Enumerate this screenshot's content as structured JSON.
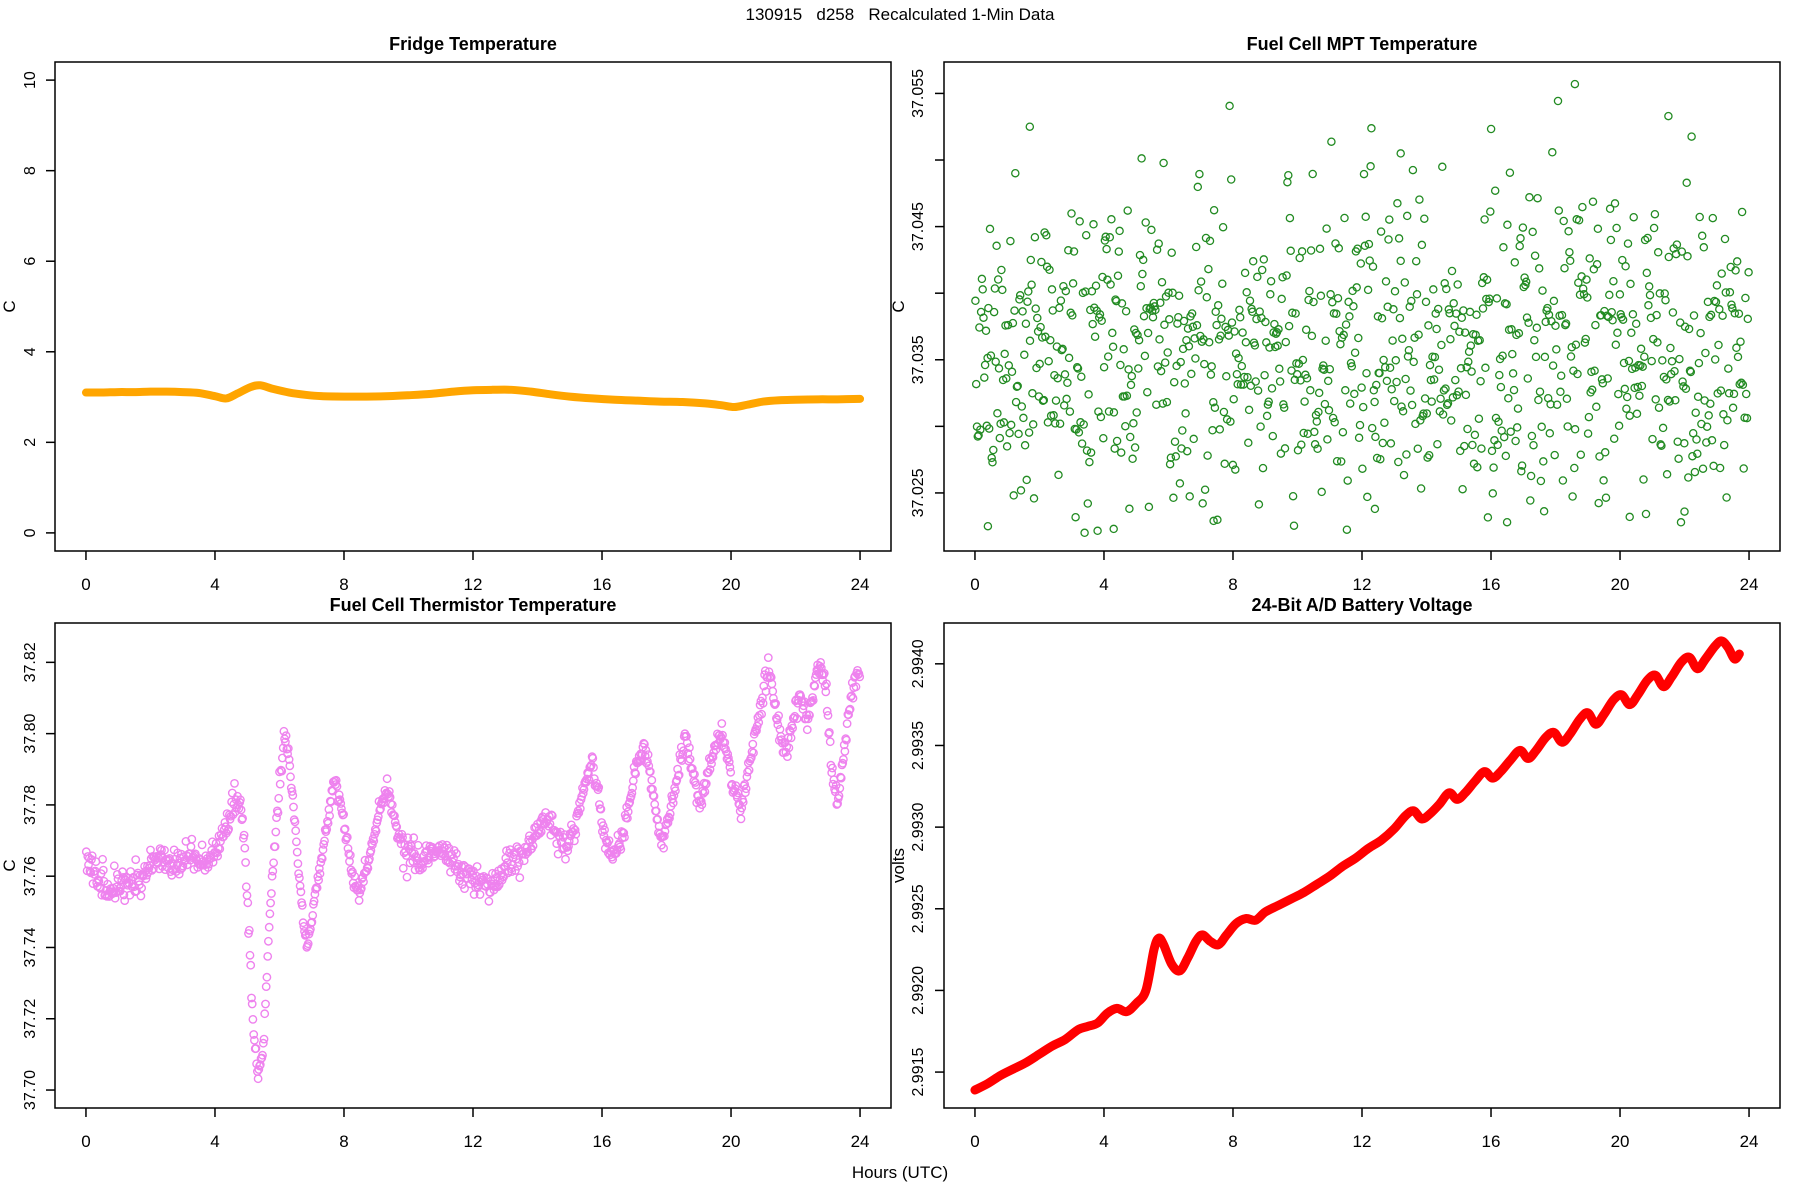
{
  "page": {
    "main_title": "130915   d258   Recalculated 1-Min Data",
    "xlabel_shared": "Hours (UTC)"
  },
  "chart_data": [
    {
      "id": "fridge",
      "type": "line",
      "title": "Fridge Temperature",
      "ylabel": "C",
      "xlabel": "",
      "xlim": [
        0,
        24
      ],
      "ylim": [
        0,
        10
      ],
      "xticks": [
        {
          "v": 0,
          "label": "0"
        },
        {
          "v": 4,
          "label": "4"
        },
        {
          "v": 8,
          "label": "8"
        },
        {
          "v": 12,
          "label": "12"
        },
        {
          "v": 16,
          "label": "16"
        },
        {
          "v": 20,
          "label": "20"
        },
        {
          "v": 24,
          "label": "24"
        }
      ],
      "yticks": [
        {
          "v": 0,
          "label": "0"
        },
        {
          "v": 2,
          "label": "2"
        },
        {
          "v": 4,
          "label": "4"
        },
        {
          "v": 6,
          "label": "6"
        },
        {
          "v": 8,
          "label": "8"
        },
        {
          "v": 10,
          "label": "10"
        }
      ],
      "color": "#FFA500",
      "line_width": 8,
      "points": [
        [
          0,
          3.1
        ],
        [
          0.5,
          3.1
        ],
        [
          1,
          3.11
        ],
        [
          1.5,
          3.11
        ],
        [
          2,
          3.12
        ],
        [
          2.5,
          3.12
        ],
        [
          3,
          3.11
        ],
        [
          3.5,
          3.09
        ],
        [
          4.0,
          3.02
        ],
        [
          4.35,
          2.97
        ],
        [
          4.7,
          3.08
        ],
        [
          5.1,
          3.22
        ],
        [
          5.4,
          3.26
        ],
        [
          5.8,
          3.18
        ],
        [
          6.3,
          3.1
        ],
        [
          6.8,
          3.05
        ],
        [
          7.3,
          3.02
        ],
        [
          8,
          3.01
        ],
        [
          8.7,
          3.01
        ],
        [
          9.4,
          3.02
        ],
        [
          10,
          3.04
        ],
        [
          10.7,
          3.07
        ],
        [
          11.4,
          3.12
        ],
        [
          12,
          3.15
        ],
        [
          12.6,
          3.16
        ],
        [
          13.2,
          3.16
        ],
        [
          13.8,
          3.12
        ],
        [
          14.4,
          3.06
        ],
        [
          15,
          3.01
        ],
        [
          15.7,
          2.97
        ],
        [
          16.4,
          2.94
        ],
        [
          17.1,
          2.92
        ],
        [
          17.8,
          2.9
        ],
        [
          18.5,
          2.89
        ],
        [
          19.2,
          2.86
        ],
        [
          19.7,
          2.82
        ],
        [
          20.1,
          2.78
        ],
        [
          20.5,
          2.83
        ],
        [
          21,
          2.9
        ],
        [
          21.5,
          2.93
        ],
        [
          22,
          2.94
        ],
        [
          22.7,
          2.95
        ],
        [
          23.3,
          2.95
        ],
        [
          24,
          2.96
        ]
      ]
    },
    {
      "id": "mpt",
      "type": "scatter-random",
      "title": "Fuel Cell MPT Temperature",
      "ylabel": "C",
      "xlabel": "",
      "xlim": [
        0,
        24
      ],
      "ylim": [
        37.022,
        37.056
      ],
      "xticks": [
        {
          "v": 0,
          "label": "0"
        },
        {
          "v": 4,
          "label": "4"
        },
        {
          "v": 8,
          "label": "8"
        },
        {
          "v": 12,
          "label": "12"
        },
        {
          "v": 16,
          "label": "16"
        },
        {
          "v": 20,
          "label": "20"
        },
        {
          "v": 24,
          "label": "24"
        }
      ],
      "yticks": [
        {
          "v": 37.025,
          "label": "37.025"
        },
        {
          "v": 37.03,
          "label": ""
        },
        {
          "v": 37.035,
          "label": "37.035"
        },
        {
          "v": 37.04,
          "label": ""
        },
        {
          "v": 37.045,
          "label": "37.045"
        },
        {
          "v": 37.05,
          "label": ""
        },
        {
          "v": 37.055,
          "label": "37.055"
        }
      ],
      "color": "#228B22",
      "marker": "open-circle",
      "marker_radius": 3.6,
      "marker_stroke": 1.3,
      "n_points": 950,
      "mean": 37.0355,
      "sd": 0.0058,
      "clip": [
        37.022,
        37.056
      ],
      "seed": 1337,
      "extra_points": [
        [
          18.6,
          37.0557
        ],
        [
          1.7,
          37.0525
        ],
        [
          21.5,
          37.0533
        ],
        [
          13.2,
          37.0505
        ],
        [
          0.4,
          37.0225
        ],
        [
          4.3,
          37.0223
        ],
        [
          7.4,
          37.0229
        ],
        [
          12.4,
          37.0238
        ],
        [
          16.5,
          37.0228
        ],
        [
          20.3,
          37.0232
        ],
        [
          22.0,
          37.0236
        ]
      ]
    },
    {
      "id": "thermistor",
      "type": "scatter-profile",
      "title": "Fuel Cell Thermistor Temperature",
      "ylabel": "C",
      "xlabel": "",
      "xlim": [
        0,
        24
      ],
      "ylim": [
        37.7,
        37.826
      ],
      "xticks": [
        {
          "v": 0,
          "label": "0"
        },
        {
          "v": 4,
          "label": "4"
        },
        {
          "v": 8,
          "label": "8"
        },
        {
          "v": 12,
          "label": "12"
        },
        {
          "v": 16,
          "label": "16"
        },
        {
          "v": 20,
          "label": "20"
        },
        {
          "v": 24,
          "label": "24"
        }
      ],
      "yticks": [
        {
          "v": 37.7,
          "label": "37.70"
        },
        {
          "v": 37.72,
          "label": "37.72"
        },
        {
          "v": 37.74,
          "label": "37.74"
        },
        {
          "v": 37.76,
          "label": "37.76"
        },
        {
          "v": 37.78,
          "label": "37.78"
        },
        {
          "v": 37.8,
          "label": "37.80"
        },
        {
          "v": 37.82,
          "label": "37.82"
        }
      ],
      "color": "#EE82EE",
      "marker": "open-circle",
      "marker_radius": 3.7,
      "marker_stroke": 1.4,
      "n_points": 1050,
      "seed": 77,
      "noise_segments": [
        {
          "from": 0.0,
          "to": 4.9,
          "sd": 0.0024
        },
        {
          "from": 4.9,
          "to": 9.6,
          "sd": 0.0012
        },
        {
          "from": 9.6,
          "to": 13.5,
          "sd": 0.0022
        },
        {
          "from": 13.5,
          "to": 24.0,
          "sd": 0.0015
        }
      ],
      "profile": [
        [
          0,
          37.764
        ],
        [
          0.3,
          37.76
        ],
        [
          0.6,
          37.757
        ],
        [
          0.9,
          37.759
        ],
        [
          1.2,
          37.756
        ],
        [
          1.5,
          37.758
        ],
        [
          1.8,
          37.762
        ],
        [
          2.1,
          37.765
        ],
        [
          2.4,
          37.763
        ],
        [
          2.7,
          37.762
        ],
        [
          3.0,
          37.765
        ],
        [
          3.3,
          37.766
        ],
        [
          3.6,
          37.763
        ],
        [
          3.9,
          37.765
        ],
        [
          4.2,
          37.769
        ],
        [
          4.5,
          37.779
        ],
        [
          4.7,
          37.783
        ],
        [
          4.9,
          37.773
        ],
        [
          5.05,
          37.745
        ],
        [
          5.2,
          37.716
        ],
        [
          5.35,
          37.704
        ],
        [
          5.5,
          37.712
        ],
        [
          5.65,
          37.74
        ],
        [
          5.8,
          37.762
        ],
        [
          6.0,
          37.785
        ],
        [
          6.15,
          37.8
        ],
        [
          6.3,
          37.793
        ],
        [
          6.5,
          37.772
        ],
        [
          6.7,
          37.75
        ],
        [
          6.85,
          37.74
        ],
        [
          7.0,
          37.748
        ],
        [
          7.2,
          37.76
        ],
        [
          7.45,
          37.773
        ],
        [
          7.7,
          37.787
        ],
        [
          7.9,
          37.781
        ],
        [
          8.1,
          37.77
        ],
        [
          8.3,
          37.758
        ],
        [
          8.5,
          37.755
        ],
        [
          8.7,
          37.762
        ],
        [
          8.9,
          37.77
        ],
        [
          9.15,
          37.78
        ],
        [
          9.35,
          37.784
        ],
        [
          9.6,
          37.775
        ],
        [
          9.85,
          37.768
        ],
        [
          10.1,
          37.766
        ],
        [
          10.4,
          37.764
        ],
        [
          10.7,
          37.766
        ],
        [
          11.0,
          37.768
        ],
        [
          11.3,
          37.765
        ],
        [
          11.6,
          37.762
        ],
        [
          11.9,
          37.76
        ],
        [
          12.2,
          37.758
        ],
        [
          12.5,
          37.757
        ],
        [
          12.8,
          37.76
        ],
        [
          13.1,
          37.764
        ],
        [
          13.4,
          37.765
        ],
        [
          13.7,
          37.768
        ],
        [
          14.0,
          37.772
        ],
        [
          14.3,
          37.777
        ],
        [
          14.6,
          37.772
        ],
        [
          14.9,
          37.768
        ],
        [
          15.2,
          37.774
        ],
        [
          15.45,
          37.785
        ],
        [
          15.7,
          37.792
        ],
        [
          15.9,
          37.781
        ],
        [
          16.1,
          37.77
        ],
        [
          16.35,
          37.765
        ],
        [
          16.6,
          37.771
        ],
        [
          16.85,
          37.779
        ],
        [
          17.1,
          37.793
        ],
        [
          17.3,
          37.796
        ],
        [
          17.5,
          37.789
        ],
        [
          17.7,
          37.775
        ],
        [
          17.9,
          37.77
        ],
        [
          18.1,
          37.778
        ],
        [
          18.35,
          37.79
        ],
        [
          18.6,
          37.798
        ],
        [
          18.8,
          37.79
        ],
        [
          19.0,
          37.78
        ],
        [
          19.2,
          37.785
        ],
        [
          19.45,
          37.795
        ],
        [
          19.7,
          37.801
        ],
        [
          19.9,
          37.793
        ],
        [
          20.1,
          37.784
        ],
        [
          20.3,
          37.779
        ],
        [
          20.55,
          37.79
        ],
        [
          20.8,
          37.802
        ],
        [
          21.0,
          37.812
        ],
        [
          21.15,
          37.818
        ],
        [
          21.35,
          37.81
        ],
        [
          21.55,
          37.798
        ],
        [
          21.75,
          37.795
        ],
        [
          21.95,
          37.806
        ],
        [
          22.15,
          37.812
        ],
        [
          22.35,
          37.802
        ],
        [
          22.55,
          37.812
        ],
        [
          22.75,
          37.82
        ],
        [
          22.95,
          37.812
        ],
        [
          23.15,
          37.788
        ],
        [
          23.3,
          37.78
        ],
        [
          23.5,
          37.795
        ],
        [
          23.7,
          37.81
        ],
        [
          23.9,
          37.816
        ]
      ]
    },
    {
      "id": "battery",
      "type": "line",
      "title": "24-Bit A/D Battery Voltage",
      "ylabel": "volts",
      "xlabel": "",
      "xlim": [
        0,
        24
      ],
      "ylim": [
        2.99139,
        2.99414
      ],
      "xticks": [
        {
          "v": 0,
          "label": "0"
        },
        {
          "v": 4,
          "label": "4"
        },
        {
          "v": 8,
          "label": "8"
        },
        {
          "v": 12,
          "label": "12"
        },
        {
          "v": 16,
          "label": "16"
        },
        {
          "v": 20,
          "label": "20"
        },
        {
          "v": 24,
          "label": "24"
        }
      ],
      "yticks": [
        {
          "v": 2.9915,
          "label": "2.9915"
        },
        {
          "v": 2.992,
          "label": "2.9920"
        },
        {
          "v": 2.9925,
          "label": "2.9925"
        },
        {
          "v": 2.993,
          "label": "2.9930"
        },
        {
          "v": 2.9935,
          "label": "2.9935"
        },
        {
          "v": 2.994,
          "label": "2.9940"
        }
      ],
      "color": "#FF0000",
      "line_width": 9,
      "points": [
        [
          0,
          2.99139
        ],
        [
          0.4,
          2.99143
        ],
        [
          0.8,
          2.99148
        ],
        [
          1.2,
          2.99152
        ],
        [
          1.6,
          2.99156
        ],
        [
          2.0,
          2.99161
        ],
        [
          2.4,
          2.99166
        ],
        [
          2.8,
          2.9917
        ],
        [
          3.2,
          2.99176
        ],
        [
          3.5,
          2.99178
        ],
        [
          3.8,
          2.9918
        ],
        [
          4.1,
          2.99186
        ],
        [
          4.4,
          2.99189
        ],
        [
          4.7,
          2.99187
        ],
        [
          5.0,
          2.99192
        ],
        [
          5.3,
          2.992
        ],
        [
          5.55,
          2.99225
        ],
        [
          5.7,
          2.99232
        ],
        [
          5.85,
          2.99228
        ],
        [
          6.1,
          2.99216
        ],
        [
          6.35,
          2.99212
        ],
        [
          6.6,
          2.9922
        ],
        [
          6.85,
          2.9923
        ],
        [
          7.05,
          2.99234
        ],
        [
          7.3,
          2.9923
        ],
        [
          7.55,
          2.99228
        ],
        [
          7.8,
          2.99234
        ],
        [
          8.1,
          2.99241
        ],
        [
          8.4,
          2.99244
        ],
        [
          8.7,
          2.99243
        ],
        [
          9.0,
          2.99248
        ],
        [
          9.4,
          2.99252
        ],
        [
          9.8,
          2.99256
        ],
        [
          10.2,
          2.9926
        ],
        [
          10.6,
          2.99265
        ],
        [
          11.0,
          2.9927
        ],
        [
          11.4,
          2.99276
        ],
        [
          11.8,
          2.99281
        ],
        [
          12.2,
          2.99287
        ],
        [
          12.6,
          2.99292
        ],
        [
          13.0,
          2.99299
        ],
        [
          13.35,
          2.99307
        ],
        [
          13.6,
          2.9931
        ],
        [
          13.85,
          2.99305
        ],
        [
          14.1,
          2.99308
        ],
        [
          14.4,
          2.99314
        ],
        [
          14.7,
          2.99321
        ],
        [
          14.95,
          2.99317
        ],
        [
          15.2,
          2.99321
        ],
        [
          15.5,
          2.99328
        ],
        [
          15.8,
          2.99334
        ],
        [
          16.05,
          2.9933
        ],
        [
          16.3,
          2.99334
        ],
        [
          16.6,
          2.99341
        ],
        [
          16.9,
          2.99347
        ],
        [
          17.15,
          2.99342
        ],
        [
          17.4,
          2.99347
        ],
        [
          17.7,
          2.99355
        ],
        [
          17.95,
          2.99358
        ],
        [
          18.2,
          2.99352
        ],
        [
          18.45,
          2.99357
        ],
        [
          18.75,
          2.99366
        ],
        [
          19.0,
          2.9937
        ],
        [
          19.25,
          2.99363
        ],
        [
          19.5,
          2.99369
        ],
        [
          19.8,
          2.99378
        ],
        [
          20.05,
          2.99381
        ],
        [
          20.3,
          2.99375
        ],
        [
          20.55,
          2.99381
        ],
        [
          20.85,
          2.9939
        ],
        [
          21.1,
          2.99393
        ],
        [
          21.35,
          2.99386
        ],
        [
          21.6,
          2.99392
        ],
        [
          21.9,
          2.99401
        ],
        [
          22.15,
          2.99404
        ],
        [
          22.4,
          2.99397
        ],
        [
          22.65,
          2.99403
        ],
        [
          22.95,
          2.99411
        ],
        [
          23.15,
          2.99414
        ],
        [
          23.35,
          2.9941
        ],
        [
          23.55,
          2.99403
        ],
        [
          23.7,
          2.99406
        ]
      ]
    }
  ]
}
